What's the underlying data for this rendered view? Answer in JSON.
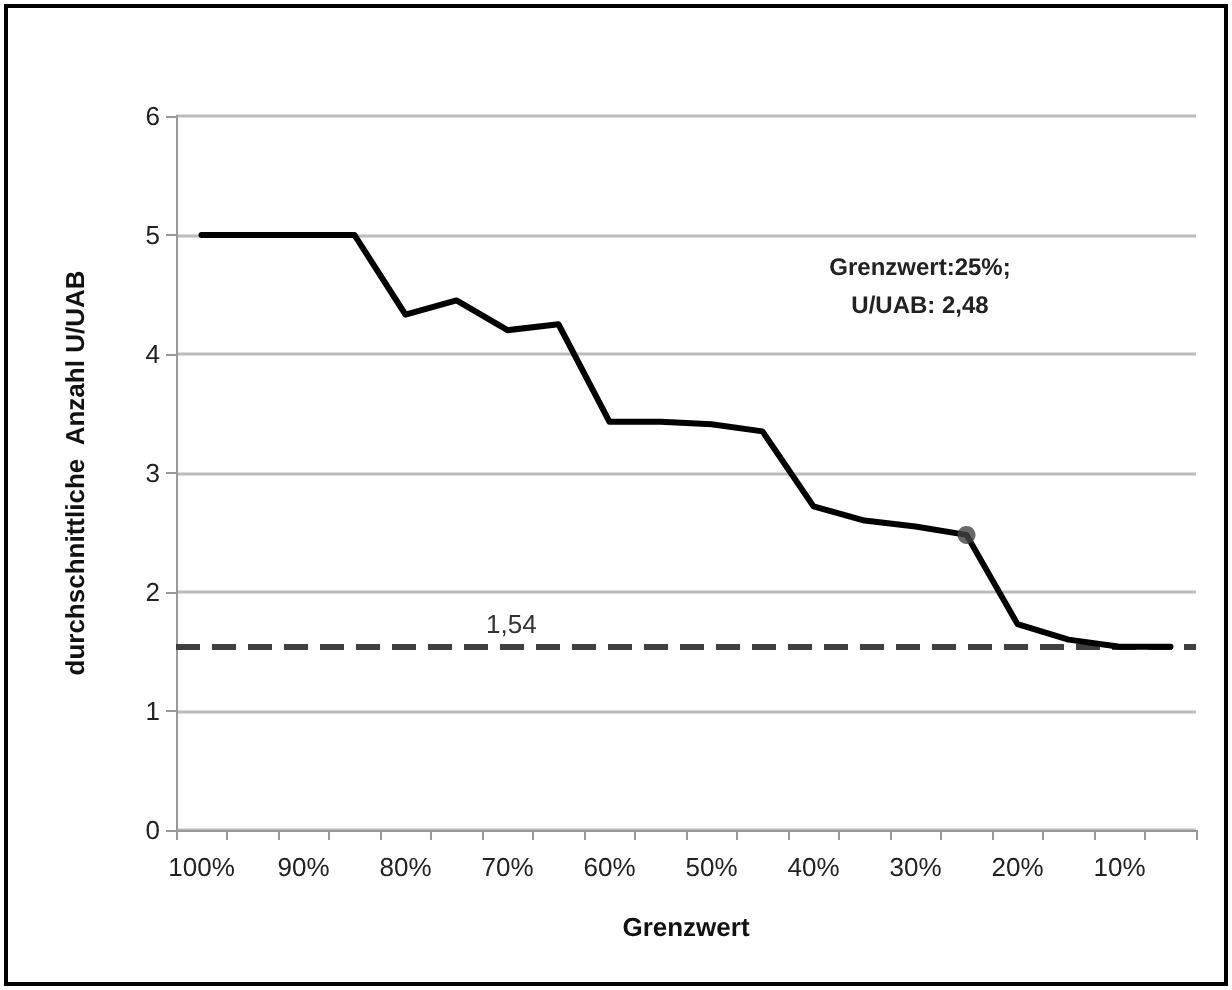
{
  "chart_data": {
    "type": "line",
    "xlabel": "Grenzwert",
    "ylabel": "durchschnittliche  Anzahl U/UAB",
    "categories": [
      "100%",
      null,
      "90%",
      null,
      "80%",
      null,
      "70%",
      null,
      "60%",
      null,
      "50%",
      null,
      "40%",
      null,
      "30%",
      null,
      "20%",
      null,
      "10%",
      null
    ],
    "series": [
      {
        "color": "#000000",
        "values": [
          5,
          5,
          5,
          5,
          4.33,
          4.45,
          4.2,
          4.25,
          3.43,
          3.43,
          3.41,
          3.35,
          2.72,
          2.6,
          2.55,
          2.48,
          1.73,
          1.6,
          1.54,
          1.54
        ]
      },
      {
        "type": "scatter",
        "color": "#444444",
        "values": [
          null,
          null,
          null,
          null,
          null,
          null,
          null,
          null,
          null,
          null,
          null,
          null,
          null,
          null,
          null,
          2.48,
          null,
          null,
          null,
          null
        ]
      }
    ],
    "ylim": [
      0,
      6
    ],
    "yticks": [
      0,
      1,
      2,
      3,
      4,
      5,
      6
    ],
    "grid": "y",
    "line_style": "solid",
    "ref_lines": [
      {
        "axis": "y",
        "value": 1.54,
        "label": "1,54",
        "color": "#404040",
        "line_style": "dashed"
      }
    ],
    "annotations": [
      "Grenzwert:25%;\nU/UAB: 2,48"
    ]
  }
}
